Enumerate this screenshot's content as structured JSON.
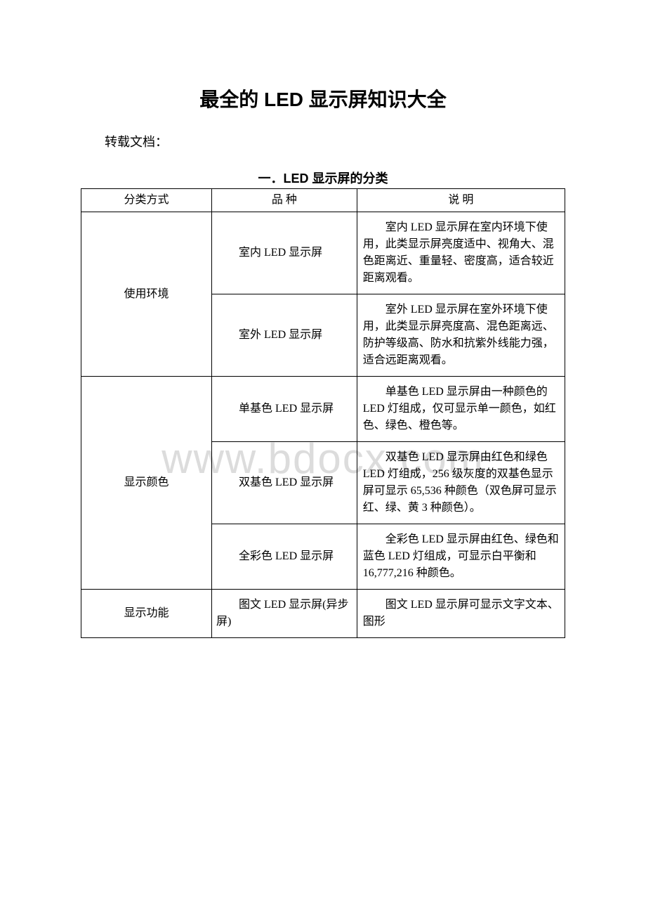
{
  "doc": {
    "main_title": "最全的 LED 显示屏知识大全",
    "subtitle": "转载文档：",
    "section_title": "一．LED 显示屏的分类",
    "watermark": "www.bdocx.com"
  },
  "table": {
    "columns": [
      "分类方式",
      "品 种",
      "说 明"
    ],
    "col_widths": [
      "27%",
      "30%",
      "43%"
    ],
    "border_color": "#000000",
    "font_size": 16,
    "text_color": "#000000",
    "background_color": "#ffffff",
    "rows": [
      {
        "category": "使用环境",
        "category_rowspan": 2,
        "type": "室内 LED 显示屏",
        "desc": "室内 LED 显示屏在室内环境下使用，此类显示屏亮度适中、视角大、混色距离近、重量轻、密度高，适合较近距离观看。"
      },
      {
        "type": "室外 LED 显示屏",
        "desc": "室外 LED 显示屏在室外环境下使用，此类显示屏亮度高、混色距离远、防护等级高、防水和抗紫外线能力强，适合远距离观看。"
      },
      {
        "category": "显示颜色",
        "category_rowspan": 3,
        "type": "单基色 LED 显示屏",
        "desc": "单基色 LED 显示屏由一种颜色的 LED 灯组成，仅可显示单一颜色，如红色、绿色、橙色等。"
      },
      {
        "type": "双基色 LED 显示屏",
        "desc": "双基色 LED 显示屏由红色和绿色 LED 灯组成，256 级灰度的双基色显示屏可显示 65,536 种颜色（双色屏可显示红、绿、黄 3 种颜色）。"
      },
      {
        "type": "全彩色 LED 显示屏",
        "desc": "全彩色 LED 显示屏由红色、绿色和蓝色 LED 灯组成，可显示白平衡和 16,777,216 种颜色。"
      },
      {
        "category": "显示功能",
        "category_rowspan": 1,
        "type": "图文 LED 显示屏(异步屏)",
        "desc": "图文 LED 显示屏可显示文字文本、图形"
      }
    ]
  }
}
